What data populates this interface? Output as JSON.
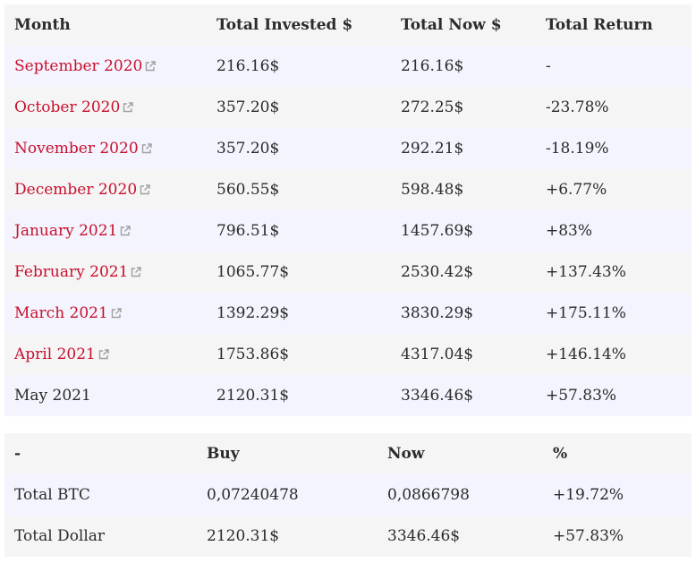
{
  "monthly": {
    "headers": {
      "month": "Month",
      "invested": "Total Invested $",
      "now": "Total Now $",
      "return": "Total Return"
    },
    "rows": [
      {
        "month": "September 2020",
        "invested": "216.16$",
        "now": "216.16$",
        "return": "-",
        "link": true
      },
      {
        "month": "October 2020",
        "invested": "357.20$",
        "now": "272.25$",
        "return": "-23.78%",
        "link": true
      },
      {
        "month": "November 2020",
        "invested": "357.20$",
        "now": "292.21$",
        "return": "-18.19%",
        "link": true
      },
      {
        "month": "December 2020",
        "invested": "560.55$",
        "now": "598.48$",
        "return": "+6.77%",
        "link": true
      },
      {
        "month": "January 2021",
        "invested": "796.51$",
        "now": "1457.69$",
        "return": "+83%",
        "link": true
      },
      {
        "month": "February 2021",
        "invested": "1065.77$",
        "now": "2530.42$",
        "return": "+137.43%",
        "link": true
      },
      {
        "month": "March 2021",
        "invested": "1392.29$",
        "now": "3830.29$",
        "return": "+175.11%",
        "link": true
      },
      {
        "month": "April 2021",
        "invested": "1753.86$",
        "now": "4317.04$",
        "return": "+146.14%",
        "link": true
      },
      {
        "month": "May 2021",
        "invested": "2120.31$",
        "now": "3346.46$",
        "return": "+57.83%",
        "link": false
      }
    ]
  },
  "summary": {
    "headers": {
      "label": "-",
      "buy": "Buy",
      "now": "Now",
      "pct": "%"
    },
    "rows": [
      {
        "label": "Total BTC",
        "buy": "0,07240478",
        "now": "0,0866798",
        "pct": "+19.72%"
      },
      {
        "label": "Total Dollar",
        "buy": "2120.31$",
        "now": "3346.46$",
        "pct": "+57.83%"
      }
    ]
  },
  "colors": {
    "link": "#c8102e",
    "row_gray": "#f5f5f5",
    "row_blue": "#f3f4fd"
  },
  "icons": {
    "external_link": "external-link-icon"
  }
}
